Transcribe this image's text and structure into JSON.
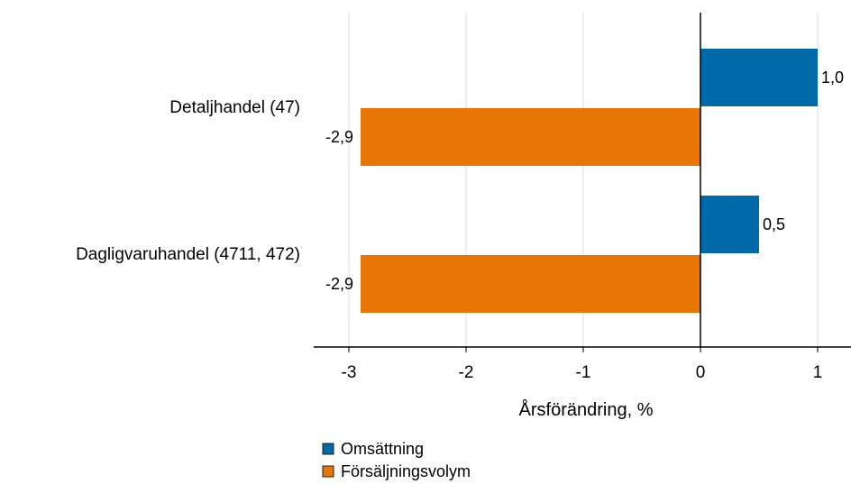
{
  "chart_data": {
    "type": "bar",
    "orientation": "horizontal",
    "categories": [
      "Detaljhandel (47)",
      "Dagligvaruhandel (4711, 472)"
    ],
    "series": [
      {
        "name": "Omsättning",
        "color": "#0069a8",
        "values": [
          1.0,
          0.5
        ],
        "labels": [
          "1,0",
          "0,5"
        ]
      },
      {
        "name": "Försäljningsvolym",
        "color": "#e87605",
        "values": [
          -2.9,
          -2.9
        ],
        "labels": [
          "-2,9",
          "-2,9"
        ]
      }
    ],
    "xlabel": "Årsförändring, %",
    "xlim": [
      -3.3,
      1.3
    ],
    "xticks": [
      -3,
      -2,
      -1,
      0,
      1
    ],
    "xtick_labels": [
      "-3",
      "-2",
      "-1",
      "0",
      "1"
    ],
    "grid": "vertical",
    "legend_position": "bottom-left"
  }
}
